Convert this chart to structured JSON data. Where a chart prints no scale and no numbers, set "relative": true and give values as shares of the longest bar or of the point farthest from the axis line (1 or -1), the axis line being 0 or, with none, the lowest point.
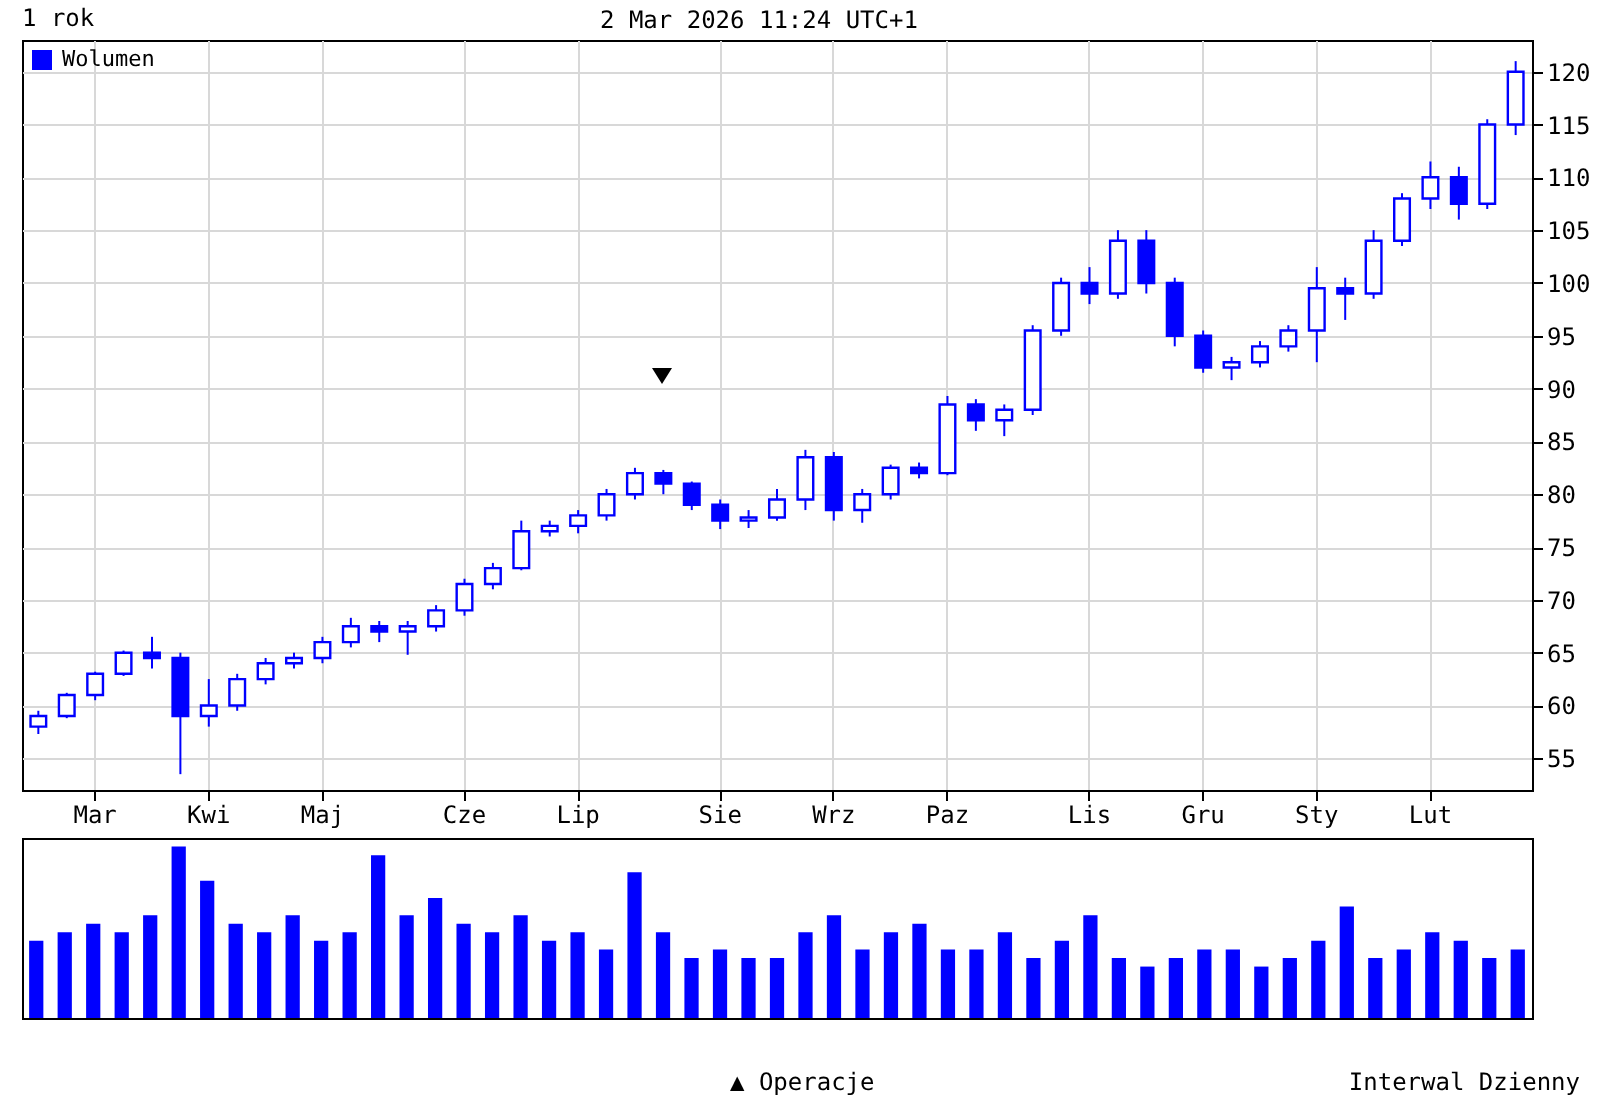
{
  "chart_data": [
    {
      "type": "candlestick",
      "title": "1 rok",
      "annotations": [
        "2 Mar 2026 11:24 UTC+1",
        "▲ Operacje",
        "Interwal Dzienny"
      ],
      "color": "#0000ff",
      "grid": true,
      "categories": [
        null,
        null,
        "Mar",
        null,
        null,
        null,
        "Kwi",
        null,
        null,
        null,
        "Maj",
        null,
        null,
        null,
        null,
        "Cze",
        null,
        null,
        null,
        "Lip",
        null,
        null,
        null,
        null,
        "Sie",
        null,
        null,
        null,
        "Wrz",
        null,
        null,
        null,
        "Paz",
        null,
        null,
        null,
        null,
        "Lis",
        null,
        null,
        null,
        "Gru",
        null,
        null,
        null,
        "Sty",
        null,
        null,
        null,
        "Lut",
        null,
        null,
        null
      ],
      "ohlc": [
        [
          58,
          59.5,
          57.3,
          59
        ],
        [
          59,
          61.2,
          58.8,
          61
        ],
        [
          61,
          63.2,
          60.5,
          63
        ],
        [
          63,
          65.2,
          62.8,
          65
        ],
        [
          65,
          66.5,
          63.5,
          64.5
        ],
        [
          64.5,
          65,
          53.5,
          59
        ],
        [
          59,
          62.5,
          58,
          60
        ],
        [
          60,
          63,
          59.5,
          62.5
        ],
        [
          62.5,
          64.5,
          62,
          64
        ],
        [
          64,
          65,
          63.5,
          64.5
        ],
        [
          64.5,
          66.5,
          64,
          66
        ],
        [
          66,
          68.3,
          65.5,
          67.5
        ],
        [
          67.5,
          68,
          66,
          67
        ],
        [
          67,
          68,
          64.8,
          67.5
        ],
        [
          67.5,
          69.5,
          67,
          69
        ],
        [
          69,
          72,
          68.5,
          71.5
        ],
        [
          71.5,
          73.5,
          71,
          73
        ],
        [
          73,
          77.5,
          72.8,
          76.5
        ],
        [
          76.5,
          77.5,
          76,
          77
        ],
        [
          77,
          78.5,
          76.3,
          78
        ],
        [
          78,
          80.5,
          77.5,
          80
        ],
        [
          80,
          82.5,
          79.5,
          82
        ],
        [
          82,
          82.3,
          80,
          81
        ],
        [
          81,
          81.2,
          78.5,
          79
        ],
        [
          79,
          79.5,
          76.7,
          77.5
        ],
        [
          77.5,
          78.5,
          76.8,
          77.8
        ],
        [
          77.8,
          80.5,
          77.5,
          79.5
        ],
        [
          79.5,
          84.2,
          78.5,
          83.5
        ],
        [
          83.5,
          84,
          77.5,
          78.5
        ],
        [
          78.5,
          80.5,
          77.3,
          80
        ],
        [
          80,
          82.8,
          79.5,
          82.5
        ],
        [
          82.5,
          83,
          81.5,
          82
        ],
        [
          82,
          89.3,
          81.8,
          88.5
        ],
        [
          88.5,
          89,
          86,
          87
        ],
        [
          87,
          88.5,
          85.5,
          88
        ],
        [
          88,
          96,
          87.5,
          95.5
        ],
        [
          95.5,
          100.5,
          95,
          100
        ],
        [
          100,
          101.5,
          98,
          99
        ],
        [
          99,
          105,
          98.5,
          104
        ],
        [
          104,
          105,
          99,
          100
        ],
        [
          100,
          100.5,
          94,
          95
        ],
        [
          95,
          95.5,
          91.5,
          92
        ],
        [
          92,
          93,
          90.8,
          92.5
        ],
        [
          92.5,
          94.5,
          92,
          94
        ],
        [
          94,
          96,
          93.5,
          95.5
        ],
        [
          95.5,
          101.5,
          92.5,
          99.5
        ],
        [
          99.5,
          100.5,
          96.5,
          99
        ],
        [
          99,
          105,
          98.5,
          104
        ],
        [
          104,
          108.5,
          103.5,
          108
        ],
        [
          108,
          111.5,
          107,
          110
        ],
        [
          110,
          111,
          106,
          107.5
        ],
        [
          107.5,
          115.5,
          107,
          115
        ],
        [
          115,
          121,
          114,
          120
        ]
      ],
      "ylim": [
        52,
        123
      ],
      "yticks": [
        55,
        60,
        65,
        70,
        75,
        80,
        85,
        90,
        95,
        100,
        105,
        110,
        115,
        120
      ]
    },
    {
      "type": "bar",
      "relative": true,
      "legend": "top left",
      "tick_labels": false,
      "categories": [
        null,
        null,
        null,
        null,
        null,
        null,
        null,
        null,
        null,
        null,
        null,
        null,
        null,
        null,
        null,
        null,
        null,
        null,
        null,
        null,
        null,
        null,
        null,
        null,
        null,
        null,
        null,
        null,
        null,
        null,
        null,
        null,
        null,
        null,
        null,
        null,
        null,
        null,
        null,
        null,
        null,
        null,
        null,
        null,
        null,
        null,
        null,
        null,
        null,
        null,
        null,
        null,
        null
      ],
      "series": [
        {
          "name": "Wolumen",
          "color": "#0000ff",
          "values": [
            0.45,
            0.5,
            0.55,
            0.5,
            0.6,
            1.0,
            0.8,
            0.55,
            0.5,
            0.6,
            0.45,
            0.5,
            0.95,
            0.6,
            0.7,
            0.55,
            0.5,
            0.6,
            0.45,
            0.5,
            0.4,
            0.85,
            0.5,
            0.35,
            0.4,
            0.35,
            0.35,
            0.5,
            0.6,
            0.4,
            0.5,
            0.55,
            0.4,
            0.4,
            0.5,
            0.35,
            0.45,
            0.6,
            0.35,
            0.3,
            0.35,
            0.4,
            0.4,
            0.3,
            0.35,
            0.45,
            0.65,
            0.35,
            0.4,
            0.5,
            0.45,
            0.35,
            0.4
          ]
        }
      ]
    }
  ]
}
